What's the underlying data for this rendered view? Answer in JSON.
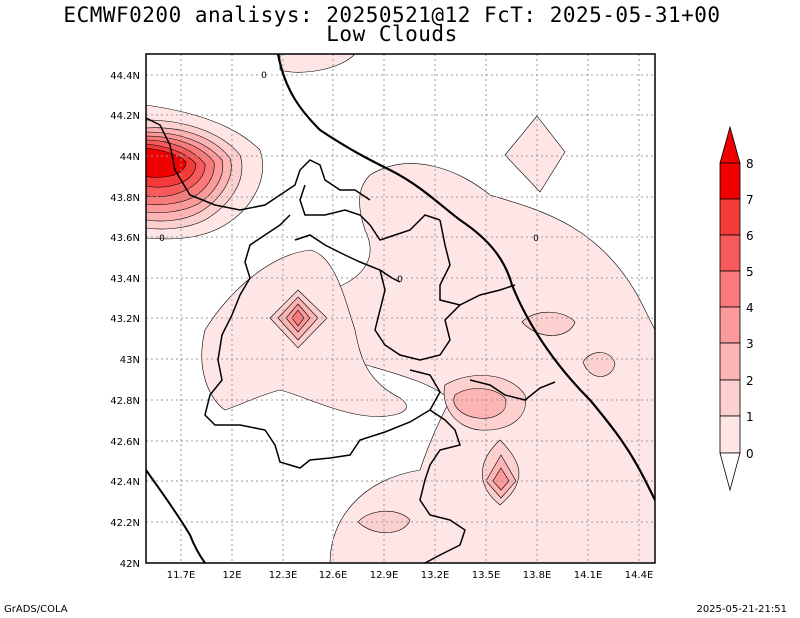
{
  "title_line1": "ECMWF0200 analisys: 20250521@12 FcT: 2025-05-31+00",
  "title_line2": "Low Clouds",
  "footer_left": "GrADS/COLA",
  "footer_right": "2025-05-21-21:51",
  "map": {
    "lat_labels": [
      "44.4N",
      "44.2N",
      "44N",
      "43.8N",
      "43.6N",
      "43.4N",
      "43.2N",
      "43N",
      "42.8N",
      "42.6N",
      "42.4N",
      "42.2N",
      "42N"
    ],
    "lon_labels": [
      "11.7E",
      "12E",
      "12.3E",
      "12.6E",
      "12.9E",
      "13.2E",
      "13.5E",
      "13.8E",
      "14.1E",
      "14.4E"
    ],
    "contour_labels": [
      "0",
      "0",
      "0",
      "0"
    ]
  },
  "colorbar": {
    "labels": [
      "8",
      "7",
      "6",
      "5",
      "4",
      "3",
      "2",
      "1",
      "0"
    ],
    "colors": [
      "#f00000",
      "#f53a3a",
      "#f75a5a",
      "#f97a7a",
      "#fb9a9a",
      "#fcb4b4",
      "#fdd0d0",
      "#ffe6e6",
      "#ffffff"
    ]
  }
}
